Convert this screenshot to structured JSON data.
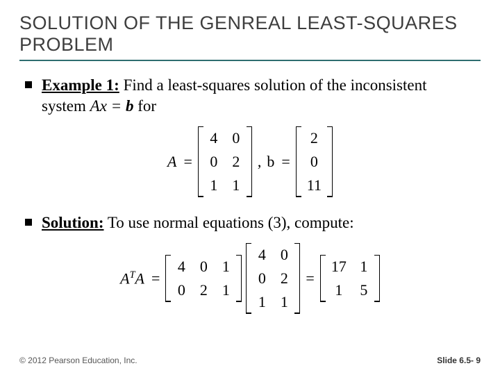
{
  "title": "SOLUTION OF THE GENREAL LEAST-SQUARES PROBLEM",
  "bullet1": {
    "lead": "Example 1:",
    "tail_a": " Find a least-squares solution of the inconsistent system ",
    "eq_inline": "Ax = b",
    "tail_b": " for"
  },
  "eq1": {
    "A_label": "A",
    "eq": "=",
    "comma": ",",
    "b_label": "b",
    "A": [
      [
        "4",
        "0"
      ],
      [
        "0",
        "2"
      ],
      [
        "1",
        "1"
      ]
    ],
    "b": [
      [
        "2"
      ],
      [
        "0"
      ],
      [
        "11"
      ]
    ]
  },
  "bullet2": {
    "lead": "Solution:",
    "tail": " To use normal equations (3), compute:"
  },
  "eq2": {
    "lhs_label_base": "A",
    "lhs_label_sup": "T",
    "lhs_label_tail": "A",
    "eq": "=",
    "M1": [
      [
        "4",
        "0",
        "1"
      ],
      [
        "0",
        "2",
        "1"
      ]
    ],
    "M2": [
      [
        "4",
        "0"
      ],
      [
        "0",
        "2"
      ],
      [
        "1",
        "1"
      ]
    ],
    "M3": [
      [
        "17",
        "1"
      ],
      [
        "1",
        "5"
      ]
    ]
  },
  "footer": {
    "left": "© 2012 Pearson Education, Inc.",
    "right": "Slide 6.5- 9"
  }
}
